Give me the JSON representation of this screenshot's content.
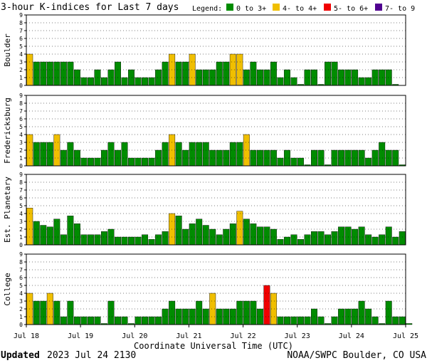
{
  "chart_data": {
    "type": "bar",
    "title": "3-hour K-indices for Last 7 days",
    "legend": {
      "label": "Legend:",
      "entries": [
        {
          "label": "0 to 3+",
          "color": "#008c00"
        },
        {
          "label": "4- to 4+",
          "color": "#f0bf00"
        },
        {
          "label": "5- to 6+",
          "color": "#f00000"
        },
        {
          "label": "7- to 9",
          "color": "#500090"
        }
      ]
    },
    "ylim": [
      0,
      9
    ],
    "yticks": [
      "0",
      "1",
      "2",
      "3",
      "4",
      "5",
      "6",
      "7",
      "8",
      "9"
    ],
    "xlabel": "Coordinate Universal Time (UTC)",
    "xticks": [
      "Jul 18",
      "Jul 19",
      "Jul 20",
      "Jul 21",
      "Jul 22",
      "Jul 23",
      "Jul 24",
      "Jul 25"
    ],
    "series": [
      {
        "name": "Boulder",
        "values": [
          4,
          3,
          3,
          3,
          3,
          3,
          3,
          2,
          1,
          1,
          2,
          1,
          2,
          3,
          1,
          2,
          1,
          1,
          1,
          2,
          3,
          4,
          3,
          3,
          4,
          2,
          2,
          2,
          3,
          3,
          4,
          4,
          2,
          3,
          2,
          2,
          3,
          1,
          2,
          1,
          0,
          2,
          2,
          0,
          3,
          3,
          2,
          2,
          2,
          1,
          1,
          2,
          2,
          2,
          0
        ]
      },
      {
        "name": "Fredericksburg",
        "values": [
          4,
          3,
          3,
          3,
          4,
          2,
          3,
          2,
          1,
          1,
          1,
          2,
          3,
          2,
          3,
          1,
          1,
          1,
          1,
          2,
          3,
          4,
          3,
          2,
          3,
          3,
          3,
          2,
          2,
          2,
          3,
          3,
          4,
          2,
          2,
          2,
          2,
          1,
          2,
          1,
          1,
          0,
          2,
          2,
          0,
          2,
          2,
          2,
          2,
          2,
          1,
          2,
          3,
          2,
          2,
          0
        ]
      },
      {
        "name": "Est. Planetary",
        "values": [
          4.7,
          3,
          2.5,
          2.3,
          3.3,
          1.3,
          3.7,
          2.7,
          1.3,
          1.3,
          1.3,
          1.7,
          2,
          1,
          1,
          1,
          1,
          1.3,
          0.7,
          1.3,
          1.7,
          4,
          3.7,
          2,
          2.7,
          3.3,
          2.5,
          2,
          1.3,
          2,
          2.7,
          4.3,
          3.3,
          2.7,
          2.3,
          2.3,
          2,
          0.7,
          1,
          1.3,
          0.7,
          1.3,
          1.7,
          1.7,
          1.3,
          1.7,
          2.3,
          2.3,
          2,
          2.3,
          1.3,
          1,
          1.3,
          2.3,
          1,
          1.7
        ]
      },
      {
        "name": "College",
        "values": [
          4,
          3,
          3,
          4,
          3,
          1,
          3,
          1,
          1,
          1,
          1,
          0,
          3,
          1,
          1,
          0,
          1,
          1,
          1,
          1,
          2,
          3,
          2,
          2,
          2,
          3,
          2,
          4,
          2,
          2,
          2,
          3,
          3,
          3,
          2,
          5,
          4,
          1,
          1,
          1,
          1,
          1,
          2,
          1,
          0,
          1,
          2,
          2,
          2,
          3,
          2,
          1,
          0,
          3,
          1,
          1,
          0
        ]
      }
    ]
  },
  "footer": {
    "updated_label": "Updated",
    "timestamp": "2023 Jul 24 2130",
    "source": "NOAA/SWPC Boulder, CO USA"
  }
}
